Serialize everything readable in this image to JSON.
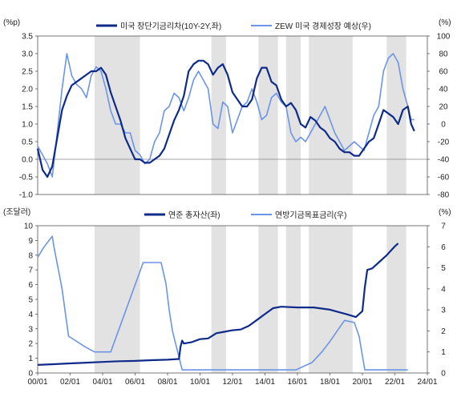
{
  "chart_data": [
    {
      "type": "line",
      "position": "top",
      "left_unit": "(%p)",
      "right_unit": "(%)",
      "left_ylim": [
        -1.0,
        3.5
      ],
      "left_ticks": [
        "3.5",
        "3.0",
        "2.5",
        "2.0",
        "1.5",
        "1.0",
        "0.5",
        "0.0",
        "-0.5",
        "-1.0"
      ],
      "right_ylim": [
        -80,
        100
      ],
      "right_ticks": [
        "100",
        "80",
        "60",
        "40",
        "20",
        "0",
        "-20",
        "-40",
        "-60",
        "-80"
      ],
      "legend": [
        {
          "name": "미국 장단기금리차(10Y-2Y,좌)",
          "color": "#0f2b8a"
        },
        {
          "name": "ZEW 미국 경제성장 예상(우)",
          "color": "#6b94e8"
        }
      ],
      "recession_bands": [
        [
          2003.5,
          2006.3
        ],
        [
          2010.7,
          2011.6
        ],
        [
          2013.6,
          2014.8
        ],
        [
          2015.3,
          2016.2
        ],
        [
          2016.7,
          2019.4
        ],
        [
          2021.5,
          2022.7
        ]
      ],
      "series": [
        {
          "name": "미국 장단기금리차(10Y-2Y,좌)",
          "axis": "left",
          "color": "#0f2b8a",
          "x": [
            2000.0,
            2000.3,
            2000.6,
            2000.9,
            2001.2,
            2001.5,
            2001.8,
            2002.1,
            2002.4,
            2002.7,
            2003.0,
            2003.3,
            2003.6,
            2003.9,
            2004.2,
            2004.5,
            2004.8,
            2005.1,
            2005.4,
            2005.7,
            2006.0,
            2006.3,
            2006.6,
            2006.9,
            2007.2,
            2007.5,
            2007.8,
            2008.1,
            2008.4,
            2008.7,
            2009.0,
            2009.3,
            2009.6,
            2009.9,
            2010.2,
            2010.5,
            2010.8,
            2011.1,
            2011.4,
            2011.7,
            2012.0,
            2012.3,
            2012.6,
            2012.9,
            2013.2,
            2013.5,
            2013.8,
            2014.1,
            2014.4,
            2014.7,
            2015.0,
            2015.3,
            2015.6,
            2015.9,
            2016.2,
            2016.5,
            2016.8,
            2017.1,
            2017.4,
            2017.7,
            2018.0,
            2018.3,
            2018.6,
            2018.9,
            2019.2,
            2019.5,
            2019.8,
            2020.1,
            2020.4,
            2020.7,
            2021.0,
            2021.3,
            2021.6,
            2021.9,
            2022.2,
            2022.5,
            2022.8,
            2023.0,
            2023.2
          ],
          "values": [
            0.3,
            -0.3,
            -0.5,
            -0.2,
            0.6,
            1.4,
            1.8,
            2.1,
            2.2,
            2.3,
            2.4,
            2.5,
            2.5,
            2.6,
            2.4,
            1.9,
            1.5,
            1.1,
            0.6,
            0.3,
            0.0,
            0.0,
            -0.1,
            -0.1,
            0.0,
            0.1,
            0.3,
            0.7,
            1.1,
            1.4,
            1.8,
            2.5,
            2.7,
            2.8,
            2.8,
            2.7,
            2.4,
            2.6,
            2.7,
            2.4,
            1.9,
            1.7,
            1.5,
            1.5,
            1.7,
            2.3,
            2.6,
            2.6,
            2.2,
            2.1,
            1.7,
            1.5,
            1.6,
            1.4,
            1.0,
            0.9,
            1.2,
            1.1,
            0.9,
            0.8,
            0.6,
            0.5,
            0.3,
            0.2,
            0.2,
            0.1,
            0.1,
            0.3,
            0.5,
            0.6,
            1.0,
            1.4,
            1.3,
            1.2,
            1.0,
            1.4,
            1.5,
            1.0,
            0.8
          ]
        },
        {
          "name": "ZEW 미국 경제성장 예상(우)",
          "axis": "right",
          "color": "#6b94e8",
          "x": [
            2000.0,
            2000.3,
            2000.6,
            2000.9,
            2001.2,
            2001.5,
            2001.8,
            2002.1,
            2002.4,
            2002.7,
            2003.0,
            2003.3,
            2003.6,
            2003.9,
            2004.2,
            2004.5,
            2004.8,
            2005.1,
            2005.4,
            2005.7,
            2006.0,
            2006.3,
            2006.6,
            2006.9,
            2007.2,
            2007.5,
            2007.8,
            2008.1,
            2008.4,
            2008.7,
            2009.0,
            2009.3,
            2009.6,
            2009.9,
            2010.2,
            2010.5,
            2010.8,
            2011.1,
            2011.4,
            2011.7,
            2012.0,
            2012.3,
            2012.6,
            2012.9,
            2013.2,
            2013.5,
            2013.8,
            2014.1,
            2014.4,
            2014.7,
            2015.0,
            2015.3,
            2015.6,
            2015.9,
            2016.2,
            2016.5,
            2016.8,
            2017.1,
            2017.4,
            2017.7,
            2018.0,
            2018.3,
            2018.6,
            2018.9,
            2019.2,
            2019.5,
            2019.8,
            2020.1,
            2020.4,
            2020.7,
            2021.0,
            2021.3,
            2021.6,
            2021.9,
            2022.2,
            2022.5,
            2022.8,
            2023.0,
            2023.2
          ],
          "values": [
            -25,
            -35,
            -45,
            -60,
            -10,
            40,
            80,
            55,
            45,
            40,
            30,
            55,
            65,
            60,
            40,
            15,
            0,
            0,
            -10,
            -10,
            -30,
            -35,
            -45,
            -40,
            -20,
            -10,
            15,
            20,
            35,
            30,
            15,
            30,
            50,
            60,
            50,
            40,
            0,
            -5,
            25,
            20,
            -10,
            5,
            20,
            25,
            40,
            25,
            5,
            10,
            30,
            35,
            25,
            20,
            -10,
            -20,
            -15,
            -20,
            -10,
            0,
            10,
            20,
            5,
            -10,
            -20,
            -30,
            -25,
            -20,
            -25,
            -30,
            -10,
            10,
            20,
            60,
            75,
            80,
            70,
            40,
            20,
            5,
            5
          ]
        }
      ]
    },
    {
      "type": "line",
      "position": "bottom",
      "left_unit": "(조달러)",
      "right_unit": "(%)",
      "left_ylim": [
        0,
        10
      ],
      "left_ticks": [
        "10",
        "9",
        "8",
        "7",
        "6",
        "5",
        "4",
        "3",
        "2",
        "1",
        "0"
      ],
      "right_ylim": [
        0,
        7
      ],
      "right_ticks": [
        "7",
        "6",
        "5",
        "4",
        "3",
        "2",
        "1",
        "0"
      ],
      "x_ticks": [
        "00/01",
        "02/01",
        "04/01",
        "06/01",
        "08/01",
        "10/01",
        "12/01",
        "14/01",
        "16/01",
        "18/01",
        "20/01",
        "22/01",
        "24/01"
      ],
      "legend": [
        {
          "name": "연준 총자산(좌)",
          "color": "#0f2b8a"
        },
        {
          "name": "연방기금목표금리(우)",
          "color": "#6b94e8"
        }
      ],
      "recession_bands": [
        [
          2003.5,
          2006.3
        ],
        [
          2010.7,
          2011.6
        ],
        [
          2013.6,
          2014.8
        ],
        [
          2015.3,
          2016.2
        ],
        [
          2016.7,
          2019.4
        ],
        [
          2021.5,
          2022.7
        ]
      ],
      "series": [
        {
          "name": "연준 총자산(좌)",
          "axis": "left",
          "color": "#0f2b8a",
          "x": [
            2000.0,
            2001.0,
            2002.0,
            2003.0,
            2004.0,
            2005.0,
            2006.0,
            2007.0,
            2008.0,
            2008.7,
            2008.8,
            2008.9,
            2009.0,
            2009.5,
            2010.0,
            2010.5,
            2011.0,
            2011.5,
            2012.0,
            2012.5,
            2013.0,
            2013.5,
            2014.0,
            2014.5,
            2015.0,
            2016.0,
            2017.0,
            2018.0,
            2019.0,
            2019.6,
            2019.8,
            2020.0,
            2020.15,
            2020.3,
            2020.6,
            2021.0,
            2021.5,
            2022.0,
            2022.2
          ],
          "values": [
            0.55,
            0.6,
            0.65,
            0.7,
            0.75,
            0.8,
            0.82,
            0.87,
            0.9,
            0.95,
            1.8,
            2.2,
            2.0,
            2.1,
            2.3,
            2.35,
            2.7,
            2.8,
            2.9,
            2.95,
            3.2,
            3.6,
            4.0,
            4.4,
            4.5,
            4.45,
            4.45,
            4.3,
            4.0,
            3.8,
            4.0,
            4.2,
            5.8,
            7.0,
            7.1,
            7.5,
            8.0,
            8.6,
            8.8
          ]
        },
        {
          "name": "연방기금목표금리(우)",
          "axis": "right",
          "color": "#6b94e8",
          "x": [
            2000.0,
            2000.4,
            2000.9,
            2001.0,
            2001.5,
            2001.9,
            2002.9,
            2003.5,
            2004.5,
            2006.5,
            2007.6,
            2007.9,
            2008.1,
            2008.3,
            2008.9,
            2015.9,
            2016.9,
            2017.5,
            2018.0,
            2018.9,
            2019.5,
            2019.8,
            2020.15,
            2022.2,
            2022.8
          ],
          "values": [
            5.5,
            6.0,
            6.5,
            6.0,
            4.0,
            1.75,
            1.25,
            1.0,
            1.0,
            5.25,
            5.25,
            4.25,
            3.0,
            2.0,
            0.15,
            0.15,
            0.5,
            1.0,
            1.5,
            2.5,
            2.4,
            1.75,
            0.15,
            0.15,
            0.15
          ]
        }
      ]
    }
  ]
}
